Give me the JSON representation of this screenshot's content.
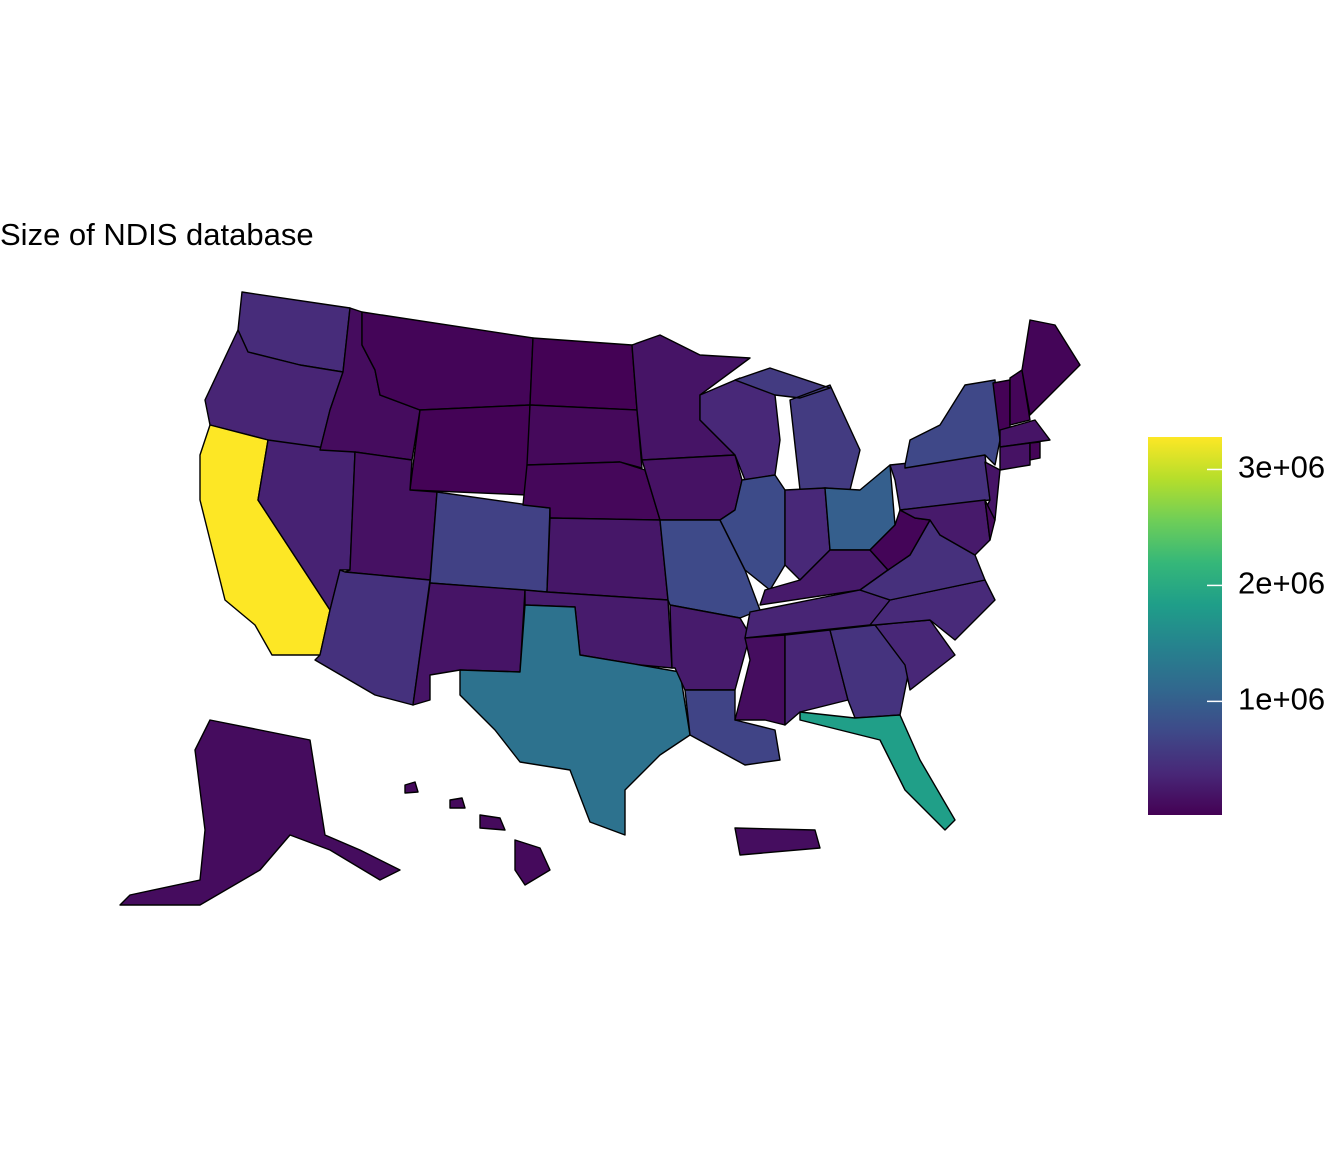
{
  "chart_data": {
    "type": "choropleth",
    "title": "Size of NDIS database",
    "values": [
      420000,
      350000,
      3280000,
      330000,
      120000,
      60000,
      40000,
      170000,
      650000,
      480000,
      200000,
      30000,
      90000,
      80000,
      220000,
      260000,
      1250000,
      200000,
      180000,
      750000,
      260000,
      680000,
      380000,
      760000,
      580000,
      380000,
      1000000,
      250000,
      350000,
      130000,
      360000,
      500000,
      1850000,
      370000,
      400000,
      470000,
      60000,
      480000,
      720000,
      200000,
      250000,
      90000,
      30000,
      60000,
      60000,
      200000,
      180000,
      50000,
      120000,
      100000,
      130000
    ],
    "lim": [
      20000,
      3280000
    ],
    "ticks": [
      {
        "value": 1000000,
        "label": "1e+06"
      },
      {
        "value": 2000000,
        "label": "2e+06"
      },
      {
        "value": 3000000,
        "label": "3e+06"
      }
    ],
    "palette": [
      "#440154",
      "#482878",
      "#3e4a89",
      "#31688e",
      "#26828e",
      "#1f9e89",
      "#35b779",
      "#6ece58",
      "#b5de2b",
      "#fde725"
    ]
  }
}
